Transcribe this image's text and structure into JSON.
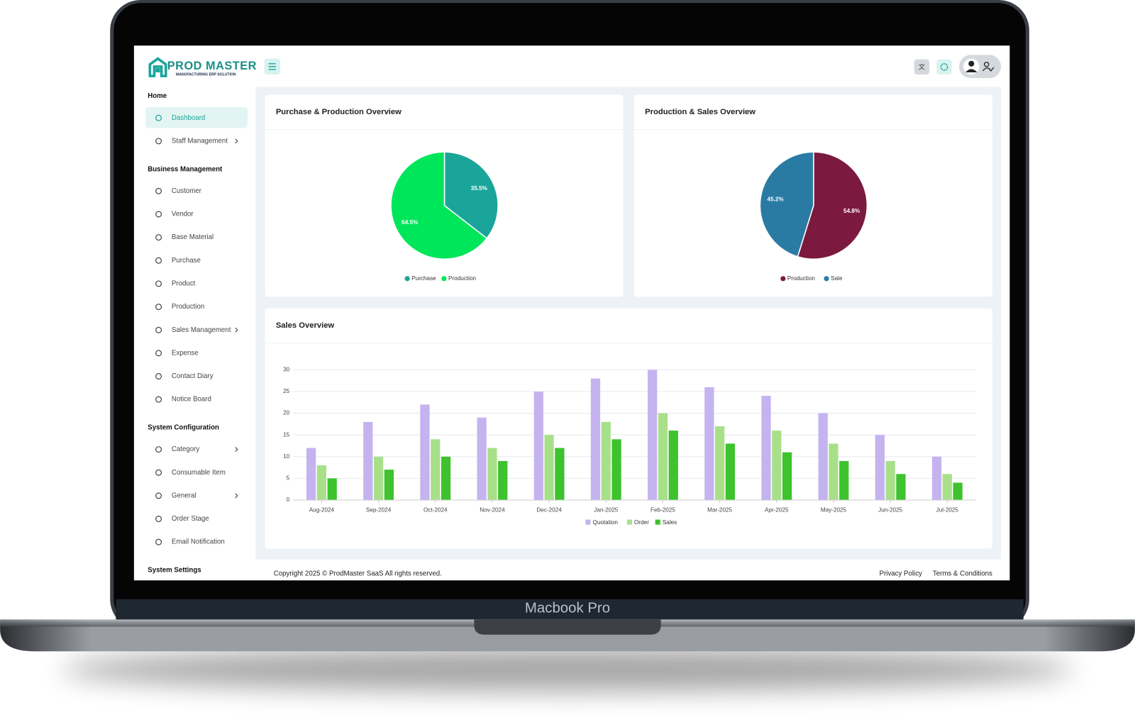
{
  "device_label": "Macbook Pro",
  "header": {
    "logo_title": "PROD MASTER",
    "logo_subtitle": "MANUFACTURING ERP SOLUTION"
  },
  "sidebar": [
    {
      "title": "Home",
      "items": [
        {
          "label": "Dashboard",
          "active": true
        },
        {
          "label": "Staff Management",
          "submenu": true
        }
      ]
    },
    {
      "title": "Business Management",
      "items": [
        {
          "label": "Customer"
        },
        {
          "label": "Vendor"
        },
        {
          "label": "Base Material"
        },
        {
          "label": "Purchase"
        },
        {
          "label": "Product"
        },
        {
          "label": "Production"
        },
        {
          "label": "Sales Management",
          "submenu": true
        },
        {
          "label": "Expense"
        },
        {
          "label": "Contact Diary"
        },
        {
          "label": "Notice Board"
        }
      ]
    },
    {
      "title": "System Configuration",
      "items": [
        {
          "label": "Category",
          "submenu": true
        },
        {
          "label": "Consumable Item"
        },
        {
          "label": "General",
          "submenu": true
        },
        {
          "label": "Order Stage"
        },
        {
          "label": "Email Notification"
        }
      ]
    },
    {
      "title": "System Settings",
      "items": []
    }
  ],
  "chart_data": [
    {
      "type": "pie",
      "title": "Purchase & Production Overview",
      "categories": [
        "Purchase",
        "Production"
      ],
      "values": [
        35.5,
        64.5
      ],
      "value_labels": [
        "35.5%",
        "64.5%"
      ],
      "colors": [
        "#1aa59a",
        "#00e65a"
      ],
      "legend": "bottom"
    },
    {
      "type": "pie",
      "title": "Production & Sales Overview",
      "categories": [
        "Production",
        "Sale"
      ],
      "values": [
        54.8,
        45.2
      ],
      "value_labels": [
        "54.8%",
        "45.2%"
      ],
      "colors": [
        "#7b1a3e",
        "#2a7ba3"
      ],
      "legend": "bottom"
    },
    {
      "type": "bar",
      "title": "Sales Overview",
      "categories": [
        "Aug-2024",
        "Sep-2024",
        "Oct-2024",
        "Nov-2024",
        "Dec-2024",
        "Jan-2025",
        "Feb-2025",
        "Mar-2025",
        "Apr-2025",
        "May-2025",
        "Jun-2025",
        "Jul-2025"
      ],
      "series": [
        {
          "name": "Quotation",
          "color": "#c5b3f0",
          "values": [
            12,
            18,
            22,
            19,
            25,
            28,
            30,
            26,
            24,
            20,
            15,
            10
          ]
        },
        {
          "name": "Order",
          "color": "#a8e08a",
          "values": [
            8,
            10,
            14,
            12,
            15,
            18,
            20,
            17,
            16,
            13,
            9,
            6
          ]
        },
        {
          "name": "Sales",
          "color": "#3ec22e",
          "values": [
            5,
            7,
            10,
            9,
            12,
            14,
            16,
            13,
            11,
            9,
            6,
            4
          ]
        }
      ],
      "ylim": [
        0,
        30
      ],
      "yticks": [
        0,
        5,
        10,
        15,
        20,
        25,
        30
      ],
      "grid": true,
      "legend": "bottom"
    }
  ],
  "footer": {
    "copyright": "Copyright 2025 © ProdMaster SaaS All rights reserved.",
    "links": [
      "Privacy Policy",
      "Terms & Conditions"
    ]
  }
}
